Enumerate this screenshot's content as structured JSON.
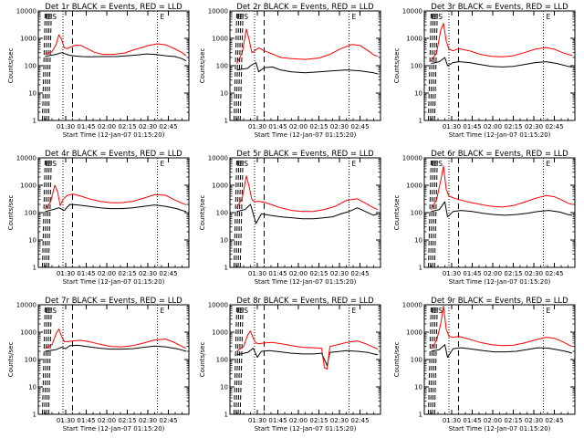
{
  "chart_data": [
    {
      "type": "line",
      "title": "Det 1r BLACK = Events, RED = LLD",
      "xlabel": "Start Time (12-Jan-07 01:15:20)",
      "ylabel": "Counts/sec",
      "y_scale": "log",
      "ylim": [
        1,
        10000
      ],
      "y_tick_labels": [
        "1",
        "10",
        "100",
        "1000",
        "10000"
      ],
      "x_tick_labels": [
        "01:30",
        "01:45",
        "02:00",
        "02:15",
        "02:30",
        "02:45"
      ],
      "flags": [
        "E",
        "ES",
        "E"
      ],
      "series": [
        {
          "color": "#000000",
          "x": [
            0,
            8,
            12,
            15,
            18,
            22,
            27,
            32,
            42,
            52,
            60,
            68,
            74,
            80,
            88,
            95,
            100,
            103
          ],
          "y": [
            220,
            260,
            300,
            270,
            240,
            225,
            215,
            210,
            215,
            215,
            230,
            250,
            270,
            260,
            230,
            215,
            180,
            150
          ]
        },
        {
          "color": "#ff0000",
          "x": [
            0,
            5,
            8,
            10,
            12,
            14,
            16,
            18,
            22,
            26,
            30,
            36,
            42,
            50,
            58,
            64,
            70,
            76,
            82,
            88,
            94,
            100,
            103
          ],
          "y": [
            260,
            320,
            600,
            1350,
            900,
            450,
            420,
            470,
            560,
            550,
            440,
            310,
            260,
            260,
            290,
            370,
            450,
            560,
            630,
            580,
            430,
            300,
            230
          ]
        }
      ]
    },
    {
      "type": "line",
      "title": "Det 2r BLACK = Events, RED = LLD",
      "xlabel": "Start Time (12-Jan-07 01:15:20)",
      "ylabel": "Counts/sec",
      "y_scale": "log",
      "ylim": [
        1,
        10000
      ],
      "y_tick_labels": [
        "1",
        "10",
        "100",
        "1000",
        "10000"
      ],
      "x_tick_labels": [
        "01:30",
        "01:45",
        "02:00",
        "02:15",
        "02:30",
        "02:45"
      ],
      "flags": [
        "E",
        "ES",
        "E"
      ],
      "series": [
        {
          "color": "#000000",
          "x": [
            0,
            8,
            10,
            14,
            16,
            20,
            26,
            32,
            40,
            50,
            60,
            70,
            80,
            90,
            100,
            103
          ],
          "y": [
            70,
            80,
            100,
            130,
            60,
            85,
            90,
            70,
            60,
            55,
            60,
            65,
            70,
            65,
            55,
            50
          ]
        },
        {
          "color": "#ff0000",
          "x": [
            0,
            4,
            7,
            9,
            11,
            13,
            16,
            20,
            26,
            32,
            40,
            50,
            60,
            68,
            76,
            84,
            90,
            96,
            100,
            103
          ],
          "y": [
            120,
            300,
            2200,
            900,
            300,
            350,
            450,
            350,
            270,
            200,
            180,
            170,
            190,
            260,
            420,
            600,
            550,
            350,
            250,
            220
          ]
        }
      ]
    },
    {
      "type": "line",
      "title": "Det 3r BLACK = Events, RED = LLD",
      "xlabel": "Start Time (12-Jan-07 01:15:20)",
      "ylabel": "Counts/sec",
      "y_scale": "log",
      "ylim": [
        1,
        10000
      ],
      "y_tick_labels": [
        "1",
        "10",
        "100",
        "1000",
        "10000"
      ],
      "x_tick_labels": [
        "01:30",
        "01:45",
        "02:00",
        "02:15",
        "02:30",
        "02:45"
      ],
      "flags": [
        "E",
        "ES",
        "E"
      ],
      "series": [
        {
          "color": "#000000",
          "x": [
            0,
            6,
            10,
            12,
            16,
            20,
            28,
            36,
            44,
            52,
            60,
            68,
            76,
            84,
            92,
            100,
            103
          ],
          "y": [
            120,
            140,
            200,
            100,
            130,
            140,
            130,
            110,
            95,
            90,
            95,
            110,
            130,
            140,
            120,
            95,
            90
          ]
        },
        {
          "color": "#ff0000",
          "x": [
            0,
            4,
            7,
            9,
            11,
            13,
            16,
            20,
            28,
            36,
            44,
            52,
            60,
            68,
            76,
            84,
            90,
            96,
            100,
            103
          ],
          "y": [
            150,
            300,
            2000,
            3500,
            800,
            400,
            350,
            420,
            350,
            260,
            220,
            210,
            230,
            300,
            400,
            460,
            400,
            300,
            260,
            240
          ]
        }
      ]
    },
    {
      "type": "line",
      "title": "Det 4r BLACK = Events, RED = LLD",
      "xlabel": "Start Time (12-Jan-07 01:15:20)",
      "ylabel": "Counts/sec",
      "y_scale": "log",
      "ylim": [
        1,
        10000
      ],
      "y_tick_labels": [
        "1",
        "10",
        "100",
        "1000",
        "10000"
      ],
      "x_tick_labels": [
        "01:30",
        "01:45",
        "02:00",
        "02:15",
        "02:30",
        "02:45"
      ],
      "flags": [
        "E",
        "ES",
        "E"
      ],
      "series": [
        {
          "color": "#000000",
          "x": [
            0,
            6,
            10,
            14,
            18,
            24,
            32,
            40,
            48,
            56,
            64,
            72,
            80,
            88,
            96,
            100,
            103
          ],
          "y": [
            110,
            130,
            150,
            120,
            200,
            190,
            170,
            150,
            140,
            140,
            150,
            170,
            190,
            170,
            140,
            120,
            110
          ]
        },
        {
          "color": "#ff0000",
          "x": [
            0,
            4,
            7,
            9,
            11,
            13,
            16,
            20,
            26,
            32,
            40,
            48,
            56,
            64,
            72,
            80,
            88,
            94,
            100,
            103
          ],
          "y": [
            130,
            250,
            1000,
            600,
            180,
            300,
            420,
            480,
            400,
            320,
            260,
            230,
            230,
            260,
            340,
            450,
            430,
            300,
            220,
            190
          ]
        }
      ]
    },
    {
      "type": "line",
      "title": "Det 5r BLACK = Events, RED = LLD",
      "xlabel": "Start Time (12-Jan-07 01:15:20)",
      "ylabel": "Counts/sec",
      "y_scale": "log",
      "ylim": [
        1,
        10000
      ],
      "y_tick_labels": [
        "1",
        "10",
        "100",
        "1000",
        "10000"
      ],
      "x_tick_labels": [
        "01:30",
        "01:45",
        "02:00",
        "02:15",
        "02:30",
        "02:45"
      ],
      "flags": [
        "E",
        "ES",
        "E"
      ],
      "series": [
        {
          "color": "#000000",
          "x": [
            0,
            6,
            10,
            14,
            18,
            24,
            32,
            40,
            48,
            56,
            64,
            70,
            76,
            82,
            88,
            94,
            100,
            103
          ],
          "y": [
            110,
            130,
            200,
            40,
            90,
            80,
            70,
            65,
            60,
            60,
            65,
            70,
            90,
            110,
            150,
            110,
            80,
            90
          ]
        },
        {
          "color": "#ff0000",
          "x": [
            0,
            4,
            7,
            9,
            11,
            13,
            16,
            20,
            26,
            32,
            40,
            48,
            56,
            64,
            72,
            80,
            88,
            94,
            100,
            103
          ],
          "y": [
            150,
            350,
            2200,
            900,
            300,
            250,
            260,
            240,
            190,
            150,
            120,
            110,
            110,
            130,
            170,
            280,
            320,
            220,
            150,
            130
          ]
        }
      ]
    },
    {
      "type": "line",
      "title": "Det 6r BLACK = Events, RED = LLD",
      "xlabel": "Start Time (12-Jan-07 01:15:20)",
      "ylabel": "Counts/sec",
      "y_scale": "log",
      "ylim": [
        1,
        10000
      ],
      "y_tick_labels": [
        "1",
        "10",
        "100",
        "1000",
        "10000"
      ],
      "x_tick_labels": [
        "01:30",
        "01:45",
        "02:00",
        "02:15",
        "02:30",
        "02:45"
      ],
      "flags": [
        "E",
        "ES",
        "E"
      ],
      "series": [
        {
          "color": "#000000",
          "x": [
            0,
            6,
            10,
            12,
            16,
            22,
            30,
            38,
            46,
            54,
            62,
            70,
            78,
            86,
            94,
            100,
            103
          ],
          "y": [
            110,
            130,
            250,
            70,
            110,
            120,
            110,
            95,
            85,
            80,
            85,
            95,
            110,
            120,
            105,
            85,
            80
          ]
        },
        {
          "color": "#ff0000",
          "x": [
            0,
            4,
            7,
            9,
            11,
            13,
            16,
            20,
            28,
            36,
            44,
            52,
            60,
            68,
            76,
            84,
            90,
            96,
            100,
            103
          ],
          "y": [
            130,
            300,
            1500,
            5000,
            700,
            400,
            350,
            300,
            240,
            200,
            170,
            160,
            180,
            240,
            330,
            420,
            380,
            280,
            220,
            200
          ]
        }
      ]
    },
    {
      "type": "line",
      "title": "Det 7r BLACK = Events, RED = LLD",
      "xlabel": "Start Time (12-Jan-07 01:15:20)",
      "ylabel": "Counts/sec",
      "y_scale": "log",
      "ylim": [
        1,
        10000
      ],
      "y_tick_labels": [
        "1",
        "10",
        "100",
        "1000",
        "10000"
      ],
      "x_tick_labels": [
        "01:30",
        "01:45",
        "02:00",
        "02:15",
        "02:30",
        "02:45"
      ],
      "flags": [
        "E",
        "ES",
        "E"
      ],
      "series": [
        {
          "color": "#000000",
          "x": [
            0,
            8,
            12,
            15,
            18,
            24,
            32,
            40,
            48,
            56,
            64,
            72,
            80,
            88,
            96,
            100,
            103
          ],
          "y": [
            200,
            230,
            280,
            250,
            320,
            330,
            290,
            260,
            240,
            240,
            250,
            280,
            310,
            290,
            250,
            220,
            200
          ]
        },
        {
          "color": "#ff0000",
          "x": [
            0,
            5,
            8,
            10,
            12,
            14,
            16,
            20,
            26,
            32,
            40,
            48,
            56,
            64,
            72,
            80,
            88,
            94,
            100,
            103
          ],
          "y": [
            250,
            350,
            900,
            1300,
            700,
            450,
            450,
            480,
            500,
            450,
            360,
            300,
            290,
            320,
            400,
            520,
            560,
            430,
            300,
            260
          ]
        }
      ]
    },
    {
      "type": "line",
      "title": "Det 8r BLACK = Events, RED = LLD",
      "xlabel": "Start Time (12-Jan-07 01:15:20)",
      "ylabel": "Counts/sec",
      "y_scale": "log",
      "ylim": [
        1,
        10000
      ],
      "y_tick_labels": [
        "1",
        "10",
        "100",
        "1000",
        "10000"
      ],
      "x_tick_labels": [
        "01:30",
        "01:45",
        "02:00",
        "02:15",
        "02:30",
        "02:45"
      ],
      "flags": [
        "E",
        "ES",
        "E"
      ],
      "series": [
        {
          "color": "#000000",
          "x": [
            0,
            8,
            12,
            15,
            18,
            24,
            32,
            40,
            48,
            56,
            62,
            66,
            68,
            72,
            80,
            88,
            96,
            100,
            103
          ],
          "y": [
            150,
            180,
            260,
            120,
            200,
            210,
            190,
            170,
            160,
            160,
            170,
            60,
            180,
            190,
            210,
            200,
            180,
            160,
            150
          ]
        },
        {
          "color": "#ff0000",
          "x": [
            0,
            5,
            8,
            10,
            12,
            14,
            16,
            20,
            26,
            32,
            40,
            48,
            56,
            62,
            64,
            66,
            68,
            72,
            80,
            88,
            94,
            100,
            103
          ],
          "y": [
            200,
            300,
            800,
            1100,
            600,
            400,
            380,
            400,
            420,
            380,
            320,
            280,
            270,
            260,
            50,
            45,
            300,
            330,
            420,
            480,
            380,
            280,
            240
          ]
        }
      ]
    },
    {
      "type": "line",
      "title": "Det 9r BLACK = Events, RED = LLD",
      "xlabel": "Start Time (12-Jan-07 01:15:20)",
      "ylabel": "Counts/sec",
      "y_scale": "log",
      "ylim": [
        1,
        10000
      ],
      "y_tick_labels": [
        "1",
        "10",
        "100",
        "1000",
        "10000"
      ],
      "x_tick_labels": [
        "01:30",
        "01:45",
        "02:00",
        "02:15",
        "02:30",
        "02:45"
      ],
      "flags": [
        "E",
        "ES",
        "E"
      ],
      "series": [
        {
          "color": "#000000",
          "x": [
            0,
            6,
            10,
            12,
            16,
            22,
            30,
            38,
            46,
            54,
            62,
            70,
            78,
            86,
            94,
            100,
            103
          ],
          "y": [
            200,
            230,
            350,
            120,
            250,
            270,
            240,
            210,
            190,
            190,
            200,
            230,
            270,
            260,
            220,
            190,
            170
          ]
        },
        {
          "color": "#ff0000",
          "x": [
            0,
            4,
            7,
            9,
            11,
            13,
            16,
            20,
            28,
            36,
            44,
            52,
            60,
            68,
            76,
            84,
            90,
            96,
            100,
            103
          ],
          "y": [
            250,
            500,
            2000,
            9000,
            1300,
            700,
            650,
            700,
            550,
            420,
            350,
            320,
            330,
            400,
            520,
            650,
            600,
            450,
            350,
            300
          ]
        }
      ]
    }
  ]
}
